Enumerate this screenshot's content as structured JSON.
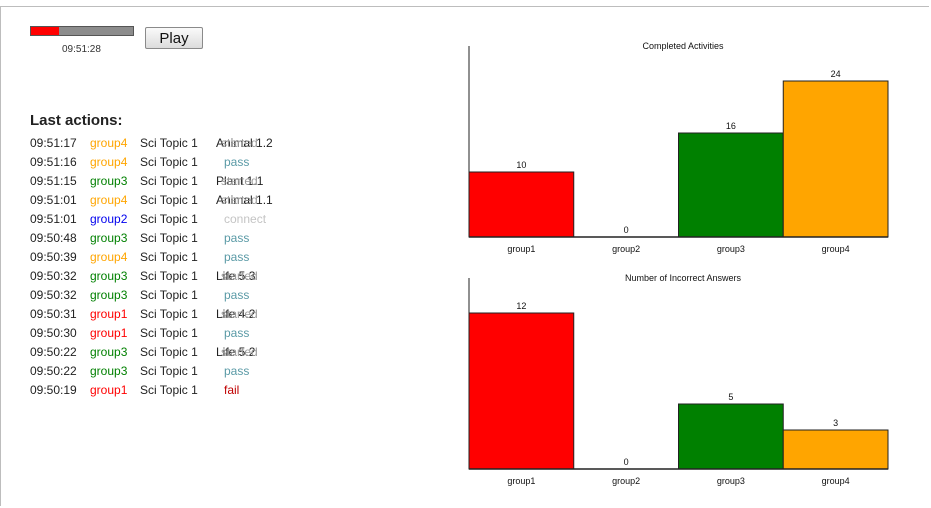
{
  "player": {
    "progress": 0.27,
    "time": "09:51:28",
    "play_label": "Play"
  },
  "log": {
    "title": "Last actions:",
    "items": [
      {
        "time": "09:51:17",
        "group": "group4",
        "topic": "Sci Topic 1",
        "item": "Animal 1.2",
        "status": "started"
      },
      {
        "time": "09:51:16",
        "group": "group4",
        "topic": "Sci Topic 1",
        "item": "",
        "status": "pass"
      },
      {
        "time": "09:51:15",
        "group": "group3",
        "topic": "Sci Topic 1",
        "item": "Plant 1.1",
        "status": "started"
      },
      {
        "time": "09:51:01",
        "group": "group4",
        "topic": "Sci Topic 1",
        "item": "Animal 1.1",
        "status": "started"
      },
      {
        "time": "09:51:01",
        "group": "group2",
        "topic": "Sci Topic 1",
        "item": "",
        "status": "connect"
      },
      {
        "time": "09:50:48",
        "group": "group3",
        "topic": "Sci Topic 1",
        "item": "",
        "status": "pass"
      },
      {
        "time": "09:50:39",
        "group": "group4",
        "topic": "Sci Topic 1",
        "item": "",
        "status": "pass"
      },
      {
        "time": "09:50:32",
        "group": "group3",
        "topic": "Sci Topic 1",
        "item": "Life 5.3",
        "status": "started"
      },
      {
        "time": "09:50:32",
        "group": "group3",
        "topic": "Sci Topic 1",
        "item": "",
        "status": "pass"
      },
      {
        "time": "09:50:31",
        "group": "group1",
        "topic": "Sci Topic 1",
        "item": "Life 4.2",
        "status": "started"
      },
      {
        "time": "09:50:30",
        "group": "group1",
        "topic": "Sci Topic 1",
        "item": "",
        "status": "pass"
      },
      {
        "time": "09:50:22",
        "group": "group3",
        "topic": "Sci Topic 1",
        "item": "Life 5.2",
        "status": "started"
      },
      {
        "time": "09:50:22",
        "group": "group3",
        "topic": "Sci Topic 1",
        "item": "",
        "status": "pass"
      },
      {
        "time": "09:50:19",
        "group": "group1",
        "topic": "Sci Topic 1",
        "item": "",
        "status": "fail"
      }
    ]
  },
  "group_colors": {
    "group1": "#ff0000",
    "group2": "#0000ee",
    "group3": "#008000",
    "group4": "#ffa500"
  },
  "chart_data": [
    {
      "type": "bar",
      "title": "Completed Activities",
      "categories": [
        "group1",
        "group2",
        "group3",
        "group4"
      ],
      "values": [
        10,
        0,
        16,
        24
      ],
      "colors": [
        "#ff0000",
        "#0000ee",
        "#008000",
        "#ffa500"
      ],
      "xlabel": "",
      "ylabel": "",
      "ylim": [
        0,
        24
      ]
    },
    {
      "type": "bar",
      "title": "Number of Incorrect Answers",
      "categories": [
        "group1",
        "group2",
        "group3",
        "group4"
      ],
      "values": [
        12,
        0,
        5,
        3
      ],
      "colors": [
        "#ff0000",
        "#0000ee",
        "#008000",
        "#ffa500"
      ],
      "xlabel": "",
      "ylabel": "",
      "ylim": [
        0,
        12
      ]
    }
  ]
}
